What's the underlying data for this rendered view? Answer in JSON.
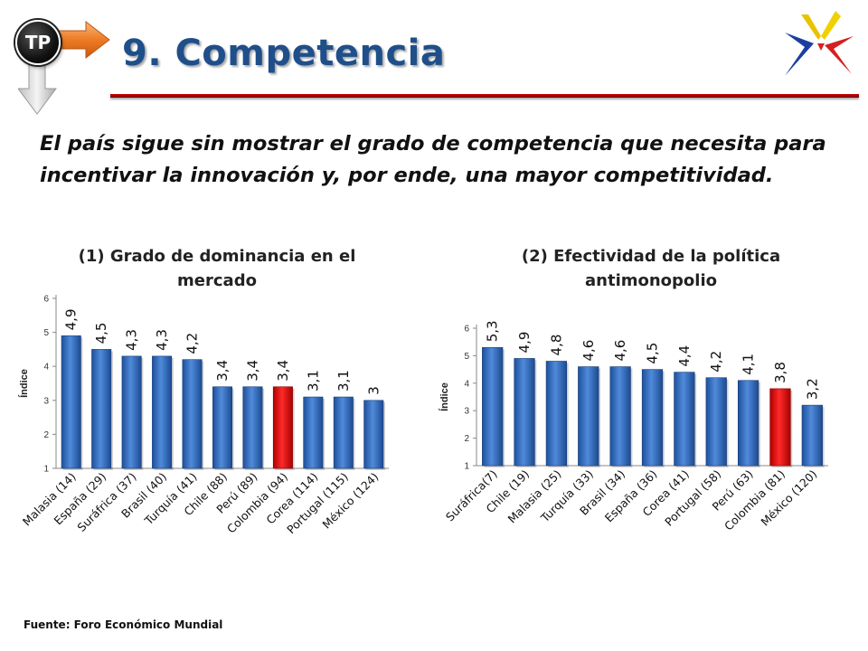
{
  "header": {
    "badge_label": "TP",
    "title": "9. Competencia"
  },
  "subtitle": "El país sigue sin mostrar el grado de competencia que necesita para incentivar la innovación y, por ende, una mayor competitividad.",
  "source": "Fuente: Foro Económico Mundial",
  "colors": {
    "title": "#1f4f8a",
    "bar_blue": "#3a73c4",
    "bar_highlight": "#e01010",
    "rule": "#c00000"
  },
  "chart_data": [
    {
      "type": "bar",
      "title": "(1) Grado de dominancia en el mercado",
      "ylabel": "Índice",
      "xlabel": "",
      "ylim": [
        1,
        6
      ],
      "yticks": [
        1,
        2,
        3,
        4,
        5,
        6
      ],
      "categories": [
        "Malasia (14)",
        "España (29)",
        "Suráfrica (37)",
        "Brasil (40)",
        "Turquía (41)",
        "Chile (88)",
        "Perú (89)",
        "Colombia (94)",
        "Corea (114)",
        "Portugal (115)",
        "México (124)"
      ],
      "values": [
        4.9,
        4.5,
        4.3,
        4.3,
        4.2,
        3.4,
        3.4,
        3.4,
        3.1,
        3.1,
        3.0
      ],
      "data_labels": [
        "4,9",
        "4,5",
        "4,3",
        "4,3",
        "4,2",
        "3,4",
        "3,4",
        "3,4",
        "3,1",
        "3,1",
        "3"
      ],
      "highlight": "Colombia (94)",
      "grid": false,
      "legend": "none"
    },
    {
      "type": "bar",
      "title": "(2) Efectividad de la política antimonopolio",
      "ylabel": "Índice",
      "xlabel": "",
      "ylim": [
        1,
        6
      ],
      "yticks": [
        1,
        2,
        3,
        4,
        5,
        6
      ],
      "categories": [
        "Suráfrica(7)",
        "Chile  (19)",
        "Malasia  (25)",
        "Turquía (33)",
        "Brasil (34)",
        "España (36)",
        "Corea (41)",
        "Portugal (58)",
        "Perú (63)",
        "Colombia (81)",
        "México (120)"
      ],
      "values": [
        5.3,
        4.9,
        4.8,
        4.6,
        4.6,
        4.5,
        4.4,
        4.2,
        4.1,
        3.8,
        3.2
      ],
      "data_labels": [
        "5,3",
        "4,9",
        "4,8",
        "4,6",
        "4,6",
        "4,5",
        "4,4",
        "4,2",
        "4,1",
        "3,8",
        "3,2"
      ],
      "highlight": "Colombia (81)",
      "grid": false,
      "legend": "none"
    }
  ]
}
